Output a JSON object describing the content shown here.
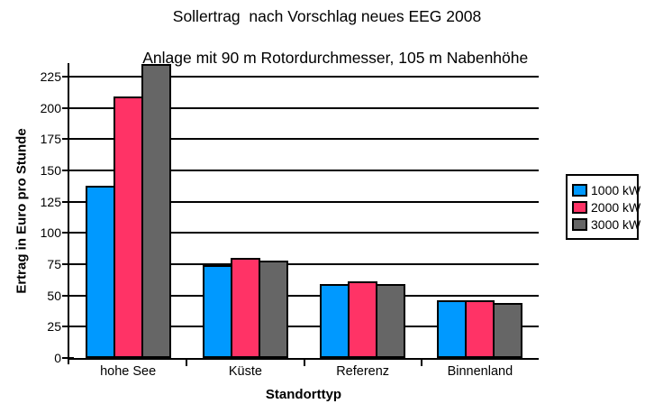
{
  "title": {
    "line1": "Sollertrag  nach Vorschlag neues EEG 2008",
    "line2": "Anlage mit 90 m Rotordurchmesser, 105 m Nabenhöhe"
  },
  "chart_data": {
    "type": "bar",
    "title": "Sollertrag nach Vorschlag neues EEG 2008 — Anlage mit 90 m Rotordurchmesser, 105 m Nabenhöhe",
    "xlabel": "Standorttyp",
    "ylabel": "Ertrag in Euro pro Stunde",
    "categories": [
      "hohe See",
      "Küste",
      "Referenz",
      "Binnenland"
    ],
    "series": [
      {
        "name": "1000 kW",
        "color": "#0099FF",
        "values": [
          138,
          74,
          59,
          46
        ]
      },
      {
        "name": "2000 kW",
        "color": "#FF3366",
        "values": [
          209,
          80,
          61,
          46
        ]
      },
      {
        "name": "3000 kW",
        "color": "#666666",
        "values": [
          235,
          78,
          59,
          44
        ]
      }
    ],
    "ylim": [
      0,
      236
    ],
    "yticks": [
      0,
      25,
      50,
      75,
      100,
      125,
      150,
      175,
      200,
      225
    ],
    "grid": "horizontal",
    "gridline_color": "#000000",
    "bar_border_color": "#000000",
    "background_color": "#FFFFFF",
    "legend_position": "right-middle"
  }
}
